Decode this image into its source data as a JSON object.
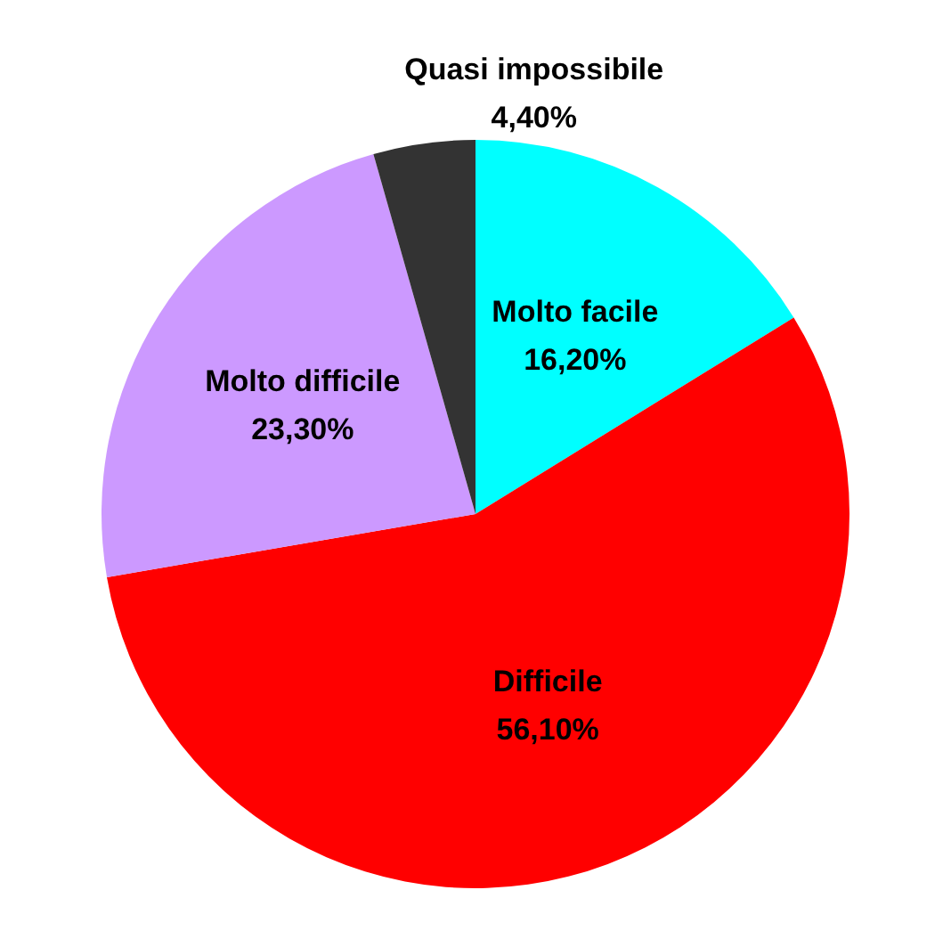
{
  "chart_data": {
    "type": "pie",
    "categories": [
      "Molto facile",
      "Difficile",
      "Molto difficile",
      "Quasi impossibile"
    ],
    "values": [
      16.2,
      56.1,
      23.3,
      4.4
    ],
    "value_labels": [
      "16,20%",
      "56,10%",
      "23,30%",
      "4,40%"
    ],
    "colors": [
      "#00ffff",
      "#ff0000",
      "#cc99ff",
      "#333333"
    ]
  }
}
